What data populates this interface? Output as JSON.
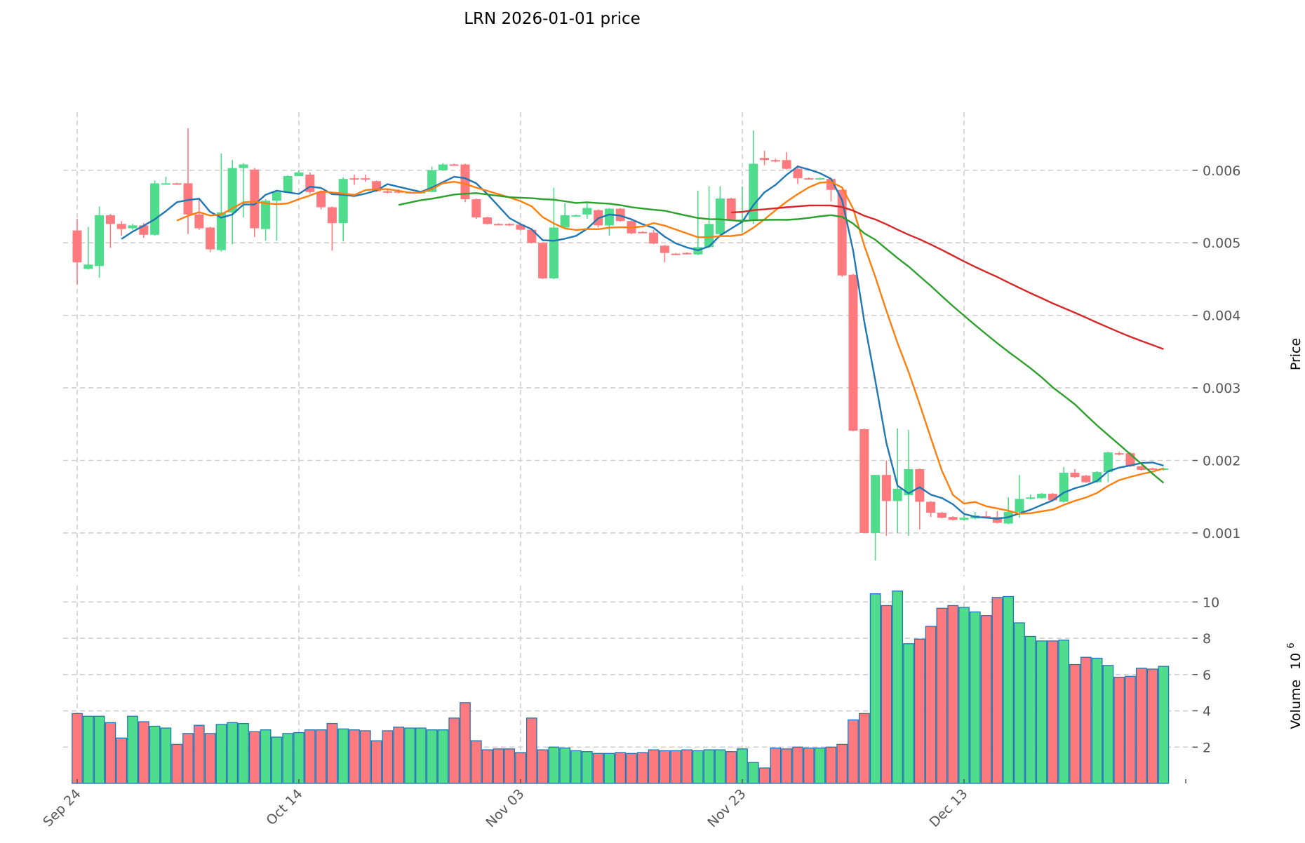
{
  "chart_data": {
    "type": "candlestick",
    "title": "LRN  2026-01-01  price",
    "ylabel": "Price",
    "volume_label": "Volume",
    "volume_exponent_label": "10",
    "volume_exponent": "6",
    "start_date": "2025-09-24",
    "x_tick_labels": [
      {
        "label": "Sep 24",
        "day": 0
      },
      {
        "label": "Oct 14",
        "day": 20
      },
      {
        "label": "Nov 03",
        "day": 40
      },
      {
        "label": "Nov 23",
        "day": 60
      },
      {
        "label": "Dec 13",
        "day": 80
      }
    ],
    "y_ticks": [
      "0.001",
      "0.002",
      "0.003",
      "0.004",
      "0.005",
      "0.006"
    ],
    "volume_ticks": [
      "2",
      "4",
      "6",
      "8",
      "10"
    ],
    "ylim": [
      0.0004,
      0.0068
    ],
    "volume_ylim": [
      0,
      10.9
    ],
    "grid": true,
    "colors": {
      "up": "#4fdc8c",
      "down": "#ff7a7e",
      "volume_edge": "#1f77b4",
      "ma5": "#1f77b4",
      "ma10": "#ff7f0e",
      "ma30": "#2ca02c",
      "ma60": "#d62728"
    },
    "moving_averages": [
      {
        "name": "MA5",
        "window": 5,
        "color_key": "ma5"
      },
      {
        "name": "MA10",
        "window": 10,
        "color_key": "ma10"
      },
      {
        "name": "MA30",
        "window": 30,
        "color_key": "ma30"
      },
      {
        "name": "MA60",
        "window": 60,
        "color_key": "ma60"
      }
    ],
    "ohlc": [
      [
        0.00517,
        0.00533,
        0.00443,
        0.00473
      ],
      [
        0.00464,
        0.00522,
        0.00463,
        0.0047
      ],
      [
        0.00468,
        0.0055,
        0.00452,
        0.00538
      ],
      [
        0.00538,
        0.0054,
        0.00493,
        0.00526
      ],
      [
        0.00526,
        0.0053,
        0.0051,
        0.00519
      ],
      [
        0.0052,
        0.00526,
        0.00518,
        0.00524
      ],
      [
        0.00524,
        0.00527,
        0.00507,
        0.00511
      ],
      [
        0.00511,
        0.00586,
        0.0051,
        0.00582
      ],
      [
        0.00581,
        0.00591,
        0.0058,
        0.00582
      ],
      [
        0.00582,
        0.00583,
        0.0058,
        0.00581
      ],
      [
        0.00582,
        0.00658,
        0.00512,
        0.00539
      ],
      [
        0.00539,
        0.0056,
        0.00518,
        0.0052
      ],
      [
        0.00521,
        0.00522,
        0.00487,
        0.00491
      ],
      [
        0.0049,
        0.00623,
        0.00488,
        0.00542
      ],
      [
        0.00542,
        0.00614,
        0.00498,
        0.00603
      ],
      [
        0.00603,
        0.0061,
        0.00535,
        0.00608
      ],
      [
        0.00601,
        0.00603,
        0.00508,
        0.0052
      ],
      [
        0.00519,
        0.0056,
        0.00503,
        0.00558
      ],
      [
        0.00558,
        0.00572,
        0.00503,
        0.0057
      ],
      [
        0.0057,
        0.00593,
        0.00569,
        0.00592
      ],
      [
        0.00592,
        0.006,
        0.00592,
        0.00597
      ],
      [
        0.00594,
        0.00597,
        0.00568,
        0.0057
      ],
      [
        0.0057,
        0.00571,
        0.00546,
        0.00549
      ],
      [
        0.00549,
        0.0055,
        0.00489,
        0.00527
      ],
      [
        0.00527,
        0.0059,
        0.00502,
        0.00588
      ],
      [
        0.00589,
        0.00594,
        0.0058,
        0.00588
      ],
      [
        0.00589,
        0.00594,
        0.00584,
        0.00587
      ],
      [
        0.00585,
        0.00586,
        0.0057,
        0.00571
      ],
      [
        0.00571,
        0.00574,
        0.00568,
        0.0057
      ],
      [
        0.00571,
        0.00574,
        0.00568,
        0.0057
      ],
      [
        0.0057,
        0.00571,
        0.00569,
        0.0057
      ],
      [
        0.0057,
        0.00571,
        0.00569,
        0.0057
      ],
      [
        0.0057,
        0.00605,
        0.0057,
        0.006
      ],
      [
        0.006,
        0.0061,
        0.00599,
        0.00608
      ],
      [
        0.00608,
        0.00609,
        0.00606,
        0.00607
      ],
      [
        0.00608,
        0.00609,
        0.00556,
        0.0056
      ],
      [
        0.0056,
        0.00561,
        0.00533,
        0.00535
      ],
      [
        0.00535,
        0.00536,
        0.00525,
        0.00526
      ],
      [
        0.00526,
        0.00527,
        0.00524,
        0.00525
      ],
      [
        0.00526,
        0.00527,
        0.00523,
        0.00524
      ],
      [
        0.00525,
        0.00526,
        0.00517,
        0.00518
      ],
      [
        0.00518,
        0.00519,
        0.00499,
        0.005
      ],
      [
        0.005,
        0.00501,
        0.0045,
        0.00451
      ],
      [
        0.00451,
        0.00576,
        0.0045,
        0.00521
      ],
      [
        0.00521,
        0.00555,
        0.0052,
        0.00538
      ],
      [
        0.00537,
        0.00539,
        0.00536,
        0.00538
      ],
      [
        0.00539,
        0.00556,
        0.00533,
        0.00548
      ],
      [
        0.00545,
        0.00546,
        0.00521,
        0.00524
      ],
      [
        0.00524,
        0.00548,
        0.0051,
        0.00547
      ],
      [
        0.00547,
        0.00548,
        0.00529,
        0.0053
      ],
      [
        0.0053,
        0.00531,
        0.00512,
        0.00513
      ],
      [
        0.00515,
        0.00516,
        0.00513,
        0.00514
      ],
      [
        0.00514,
        0.00518,
        0.00498,
        0.00499
      ],
      [
        0.00496,
        0.00497,
        0.00473,
        0.00486
      ],
      [
        0.00485,
        0.00486,
        0.00483,
        0.00484
      ],
      [
        0.00486,
        0.00487,
        0.00484,
        0.00485
      ],
      [
        0.00484,
        0.00572,
        0.00483,
        0.00494
      ],
      [
        0.00494,
        0.00578,
        0.00493,
        0.00526
      ],
      [
        0.00512,
        0.00578,
        0.00508,
        0.00561
      ],
      [
        0.00561,
        0.00562,
        0.00531,
        0.00532
      ],
      [
        0.00531,
        0.00578,
        0.00514,
        0.00532
      ],
      [
        0.00532,
        0.00655,
        0.00526,
        0.00609
      ],
      [
        0.00617,
        0.00627,
        0.00607,
        0.00614
      ],
      [
        0.00614,
        0.00616,
        0.00611,
        0.00612
      ],
      [
        0.00614,
        0.00625,
        0.00601,
        0.00602
      ],
      [
        0.00602,
        0.00607,
        0.00581,
        0.00589
      ],
      [
        0.00589,
        0.0059,
        0.00587,
        0.00588
      ],
      [
        0.00588,
        0.0059,
        0.00587,
        0.00589
      ],
      [
        0.00588,
        0.00589,
        0.00557,
        0.00573
      ],
      [
        0.00573,
        0.00574,
        0.00453,
        0.00455
      ],
      [
        0.00456,
        0.00457,
        0.0024,
        0.00241
      ],
      [
        0.00243,
        0.00244,
        0.001,
        0.001
      ],
      [
        0.001,
        0.0018,
        0.00062,
        0.0018
      ],
      [
        0.0018,
        0.002,
        0.00096,
        0.00144
      ],
      [
        0.00144,
        0.00244,
        0.001,
        0.00161
      ],
      [
        0.00152,
        0.00242,
        0.00096,
        0.00188
      ],
      [
        0.00188,
        0.00189,
        0.00105,
        0.00143
      ],
      [
        0.00143,
        0.00144,
        0.00122,
        0.00128
      ],
      [
        0.00128,
        0.00129,
        0.0012,
        0.00121
      ],
      [
        0.00122,
        0.00123,
        0.00117,
        0.00118
      ],
      [
        0.00118,
        0.00125,
        0.00117,
        0.00121
      ],
      [
        0.0012,
        0.00129,
        0.00119,
        0.00124
      ],
      [
        0.00123,
        0.0013,
        0.0012,
        0.00121
      ],
      [
        0.00122,
        0.0013,
        0.00113,
        0.00114
      ],
      [
        0.00113,
        0.00149,
        0.00112,
        0.00129
      ],
      [
        0.00129,
        0.0018,
        0.00121,
        0.00147
      ],
      [
        0.00147,
        0.00153,
        0.00146,
        0.00149
      ],
      [
        0.00148,
        0.00155,
        0.00147,
        0.00154
      ],
      [
        0.00154,
        0.00155,
        0.00144,
        0.00145
      ],
      [
        0.00143,
        0.00191,
        0.00142,
        0.00183
      ],
      [
        0.00183,
        0.00188,
        0.00176,
        0.00177
      ],
      [
        0.00179,
        0.0018,
        0.00169,
        0.0017
      ],
      [
        0.0017,
        0.00185,
        0.00169,
        0.00184
      ],
      [
        0.00184,
        0.00212,
        0.0017,
        0.00211
      ],
      [
        0.0021,
        0.00212,
        0.00207,
        0.00208
      ],
      [
        0.0021,
        0.00211,
        0.00191,
        0.00192
      ],
      [
        0.00192,
        0.00193,
        0.00186,
        0.00187
      ],
      [
        0.00189,
        0.0019,
        0.00187,
        0.00188
      ],
      [
        0.00187,
        0.0019,
        0.00186,
        0.00189
      ]
    ],
    "volume": [
      3.85,
      3.7,
      3.7,
      3.35,
      2.5,
      3.7,
      3.4,
      3.15,
      3.05,
      2.15,
      2.75,
      3.2,
      2.75,
      3.25,
      3.35,
      3.3,
      2.85,
      2.95,
      2.55,
      2.75,
      2.8,
      2.95,
      2.95,
      3.3,
      3.0,
      2.95,
      2.9,
      2.35,
      2.9,
      3.1,
      3.05,
      3.05,
      2.95,
      2.95,
      3.6,
      4.45,
      2.35,
      1.85,
      1.9,
      1.9,
      1.7,
      3.6,
      1.85,
      2.0,
      1.95,
      1.8,
      1.75,
      1.65,
      1.65,
      1.7,
      1.65,
      1.7,
      1.85,
      1.8,
      1.8,
      1.85,
      1.8,
      1.85,
      1.85,
      1.75,
      1.9,
      1.15,
      0.85,
      1.95,
      1.9,
      2.0,
      1.95,
      1.95,
      2.0,
      2.15,
      3.5,
      3.85,
      10.45,
      9.8,
      10.6,
      7.7,
      7.95,
      8.65,
      9.65,
      9.8,
      9.7,
      9.45,
      9.25,
      10.25,
      10.3,
      8.85,
      8.1,
      7.85,
      7.85,
      7.9,
      6.55,
      6.95,
      6.9,
      6.5,
      5.85,
      5.9,
      6.35,
      6.3,
      6.45
    ]
  }
}
